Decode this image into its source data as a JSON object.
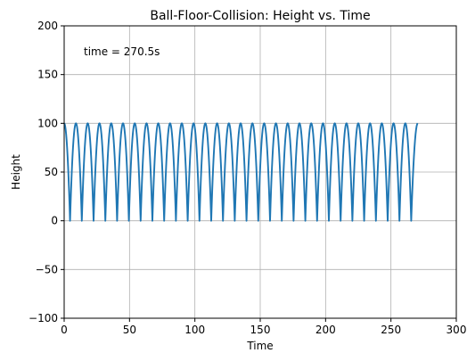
{
  "chart_data": {
    "type": "line",
    "title": "Ball-Floor-Collision: Height vs. Time",
    "xlabel": "Time",
    "ylabel": "Height",
    "xlim": [
      0,
      300
    ],
    "ylim": [
      -100,
      200
    ],
    "xticks": [
      0,
      50,
      100,
      150,
      200,
      250,
      300
    ],
    "yticks": [
      -100,
      -50,
      0,
      50,
      100,
      150,
      200
    ],
    "xtick_labels": [
      "0",
      "50",
      "100",
      "150",
      "200",
      "250",
      "300"
    ],
    "ytick_labels": [
      "−100",
      "−50",
      "0",
      "50",
      "100",
      "150",
      "200"
    ],
    "grid": true,
    "annotation": "time = 270.5s",
    "series": [
      {
        "color": "#1f77b4",
        "x": [
          0,
          4.5,
          9.0,
          13.5,
          18.0,
          22.5,
          27.0,
          31.5,
          36.0,
          40.5,
          45.0,
          49.5,
          54.0,
          58.5,
          63.0,
          67.5,
          72.0,
          76.5,
          81.0,
          85.5,
          90.0,
          94.5,
          99.0,
          103.5,
          108.0,
          112.5,
          117.0,
          121.5,
          126.0,
          130.5,
          135.0,
          139.5,
          144.0,
          148.5,
          153.0,
          157.5,
          162.0,
          166.5,
          171.0,
          175.5,
          180.0,
          184.5,
          189.0,
          193.5,
          198.0,
          202.5,
          207.0,
          211.5,
          216.0,
          220.5,
          225.0,
          229.5,
          234.0,
          238.5,
          243.0,
          247.5,
          252.0,
          256.5,
          261.0,
          265.5,
          270.5
        ],
        "y": [
          100,
          0,
          100,
          0,
          100,
          0,
          100,
          0,
          100,
          0,
          100,
          0,
          100,
          0,
          100,
          0,
          100,
          0,
          100,
          0,
          100,
          0,
          100,
          0,
          100,
          0,
          100,
          0,
          100,
          0,
          100,
          0,
          100,
          0,
          100,
          0,
          100,
          0,
          100,
          0,
          100,
          0,
          100,
          0,
          100,
          0,
          100,
          0,
          100,
          0,
          100,
          0,
          100,
          0,
          100,
          0,
          100,
          0,
          100,
          0,
          100
        ]
      }
    ]
  }
}
